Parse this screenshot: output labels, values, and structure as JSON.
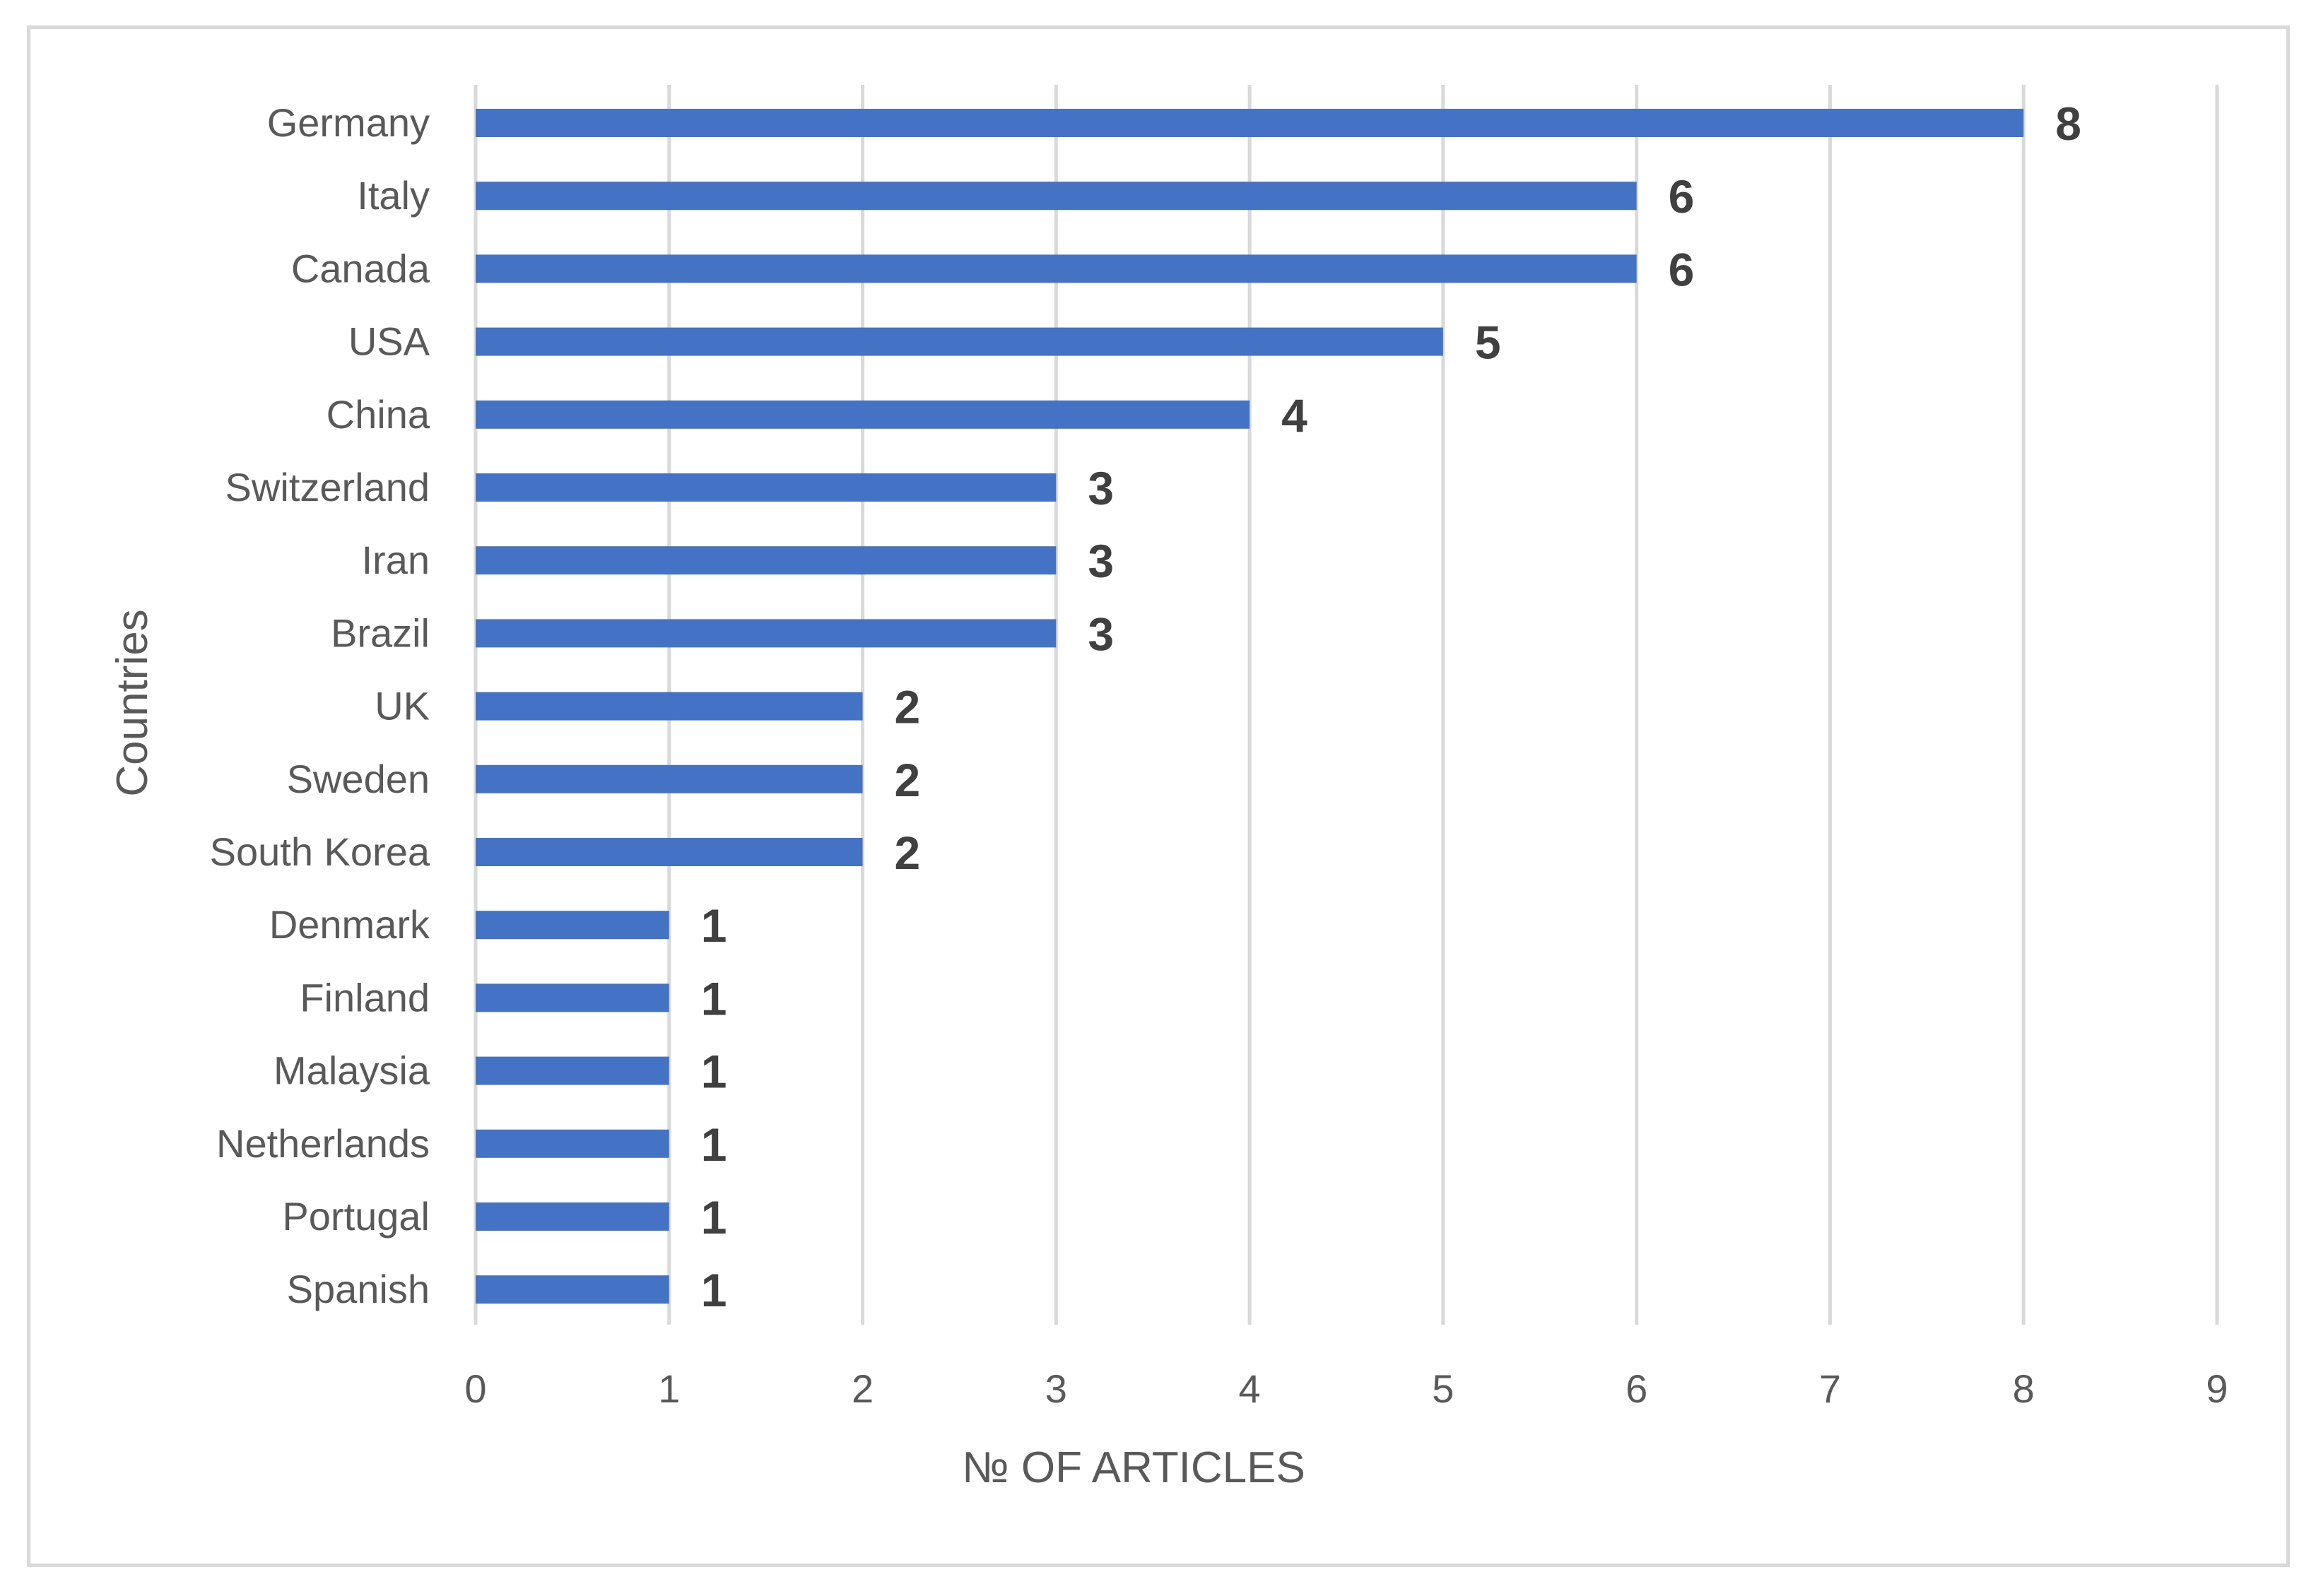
{
  "chart_data": {
    "type": "bar",
    "orientation": "horizontal",
    "categories": [
      "Germany",
      "Italy",
      "Canada",
      "USA",
      "China",
      "Switzerland",
      "Iran",
      "Brazil",
      "UK",
      "Sweden",
      "South Korea",
      "Denmark",
      "Finland",
      "Malaysia",
      "Netherlands",
      "Portugal",
      "Spanish"
    ],
    "values": [
      8,
      6,
      6,
      5,
      4,
      3,
      3,
      3,
      2,
      2,
      2,
      1,
      1,
      1,
      1,
      1,
      1
    ],
    "title": "",
    "xlabel": "№ OF ARTICLES",
    "ylabel": "Countries",
    "xlim": [
      0,
      9
    ],
    "xticks": [
      0,
      1,
      2,
      3,
      4,
      5,
      6,
      7,
      8,
      9
    ],
    "grid": true,
    "data_labels": true,
    "legend": "none",
    "bar_color": "#4472c4"
  }
}
